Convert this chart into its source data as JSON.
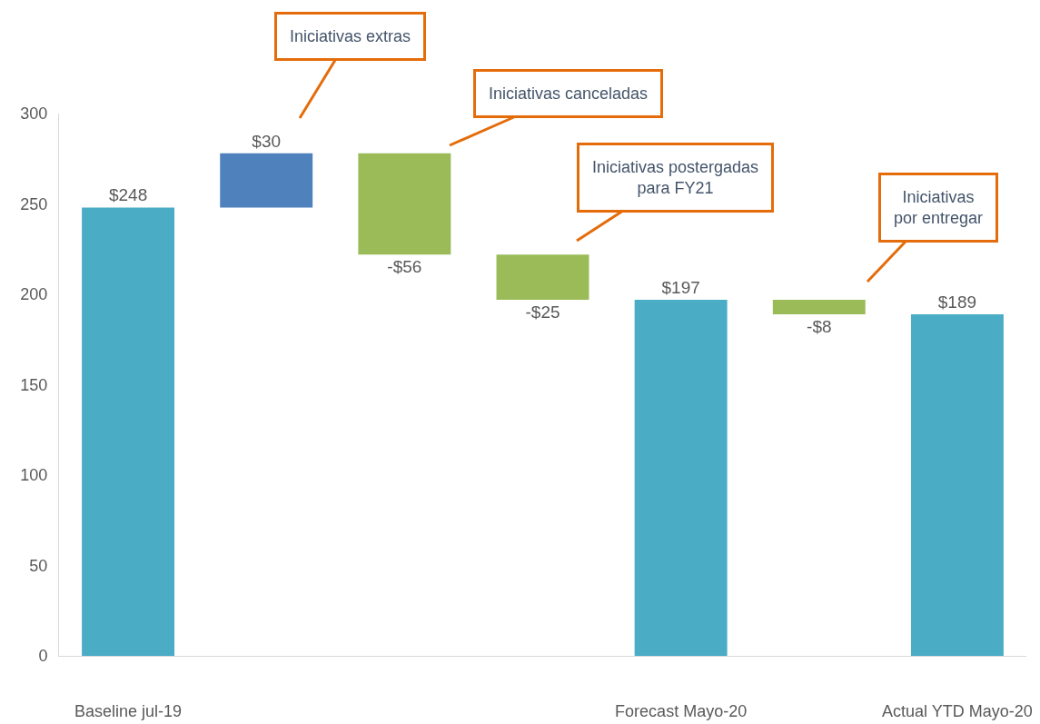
{
  "chart_data": {
    "type": "bar",
    "categories": [
      "Baseline jul-19",
      null,
      null,
      null,
      "Forecast Mayo-20",
      null,
      "Actual YTD Mayo-20"
    ],
    "values": [
      248,
      30,
      -56,
      -25,
      197,
      -8,
      189
    ],
    "base": [
      0,
      248,
      278,
      222,
      0,
      197,
      0
    ],
    "colors": [
      "#4bacc6",
      "#4f81bd",
      "#9bbb59",
      "#9bbb59",
      "#4bacc6",
      "#9bbb59",
      "#4bacc6"
    ],
    "value_labels": [
      "$248",
      "$30",
      "-$56",
      "-$25",
      "$197",
      "-$8",
      "$189"
    ],
    "ylim": [
      0,
      300
    ],
    "yticks": [
      0,
      50,
      100,
      150,
      200,
      250,
      300
    ],
    "grid": false,
    "annotations": [
      "Iniciativas extras",
      "Iniciativas canceladas",
      "Iniciativas postergadas\npara FY21",
      "Iniciativas\npor entregar"
    ]
  }
}
